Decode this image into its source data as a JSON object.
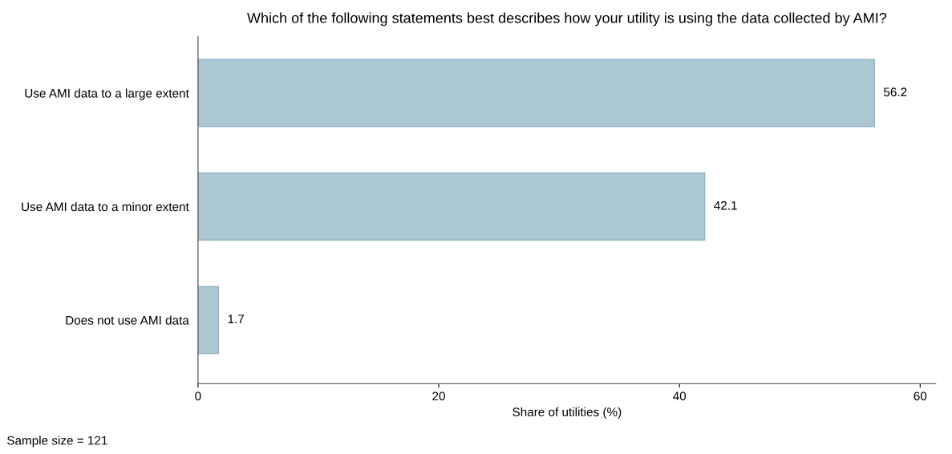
{
  "chart_data": {
    "type": "bar",
    "orientation": "horizontal",
    "title": "Which of the following statements best describes how your utility is using the data collected by AMI?",
    "categories": [
      "Use AMI data to a large extent",
      "Use AMI data to a minor extent",
      "Does not use AMI data"
    ],
    "values": [
      56.2,
      42.1,
      1.7
    ],
    "color": "#abc8d3",
    "data_labels": true,
    "xlim": [
      0,
      61.3
    ],
    "xticks": [
      0,
      20,
      40,
      60
    ],
    "xlabel": "Share of utilities (%)",
    "grid": false,
    "annotations": [
      "Sample size = 121"
    ]
  }
}
